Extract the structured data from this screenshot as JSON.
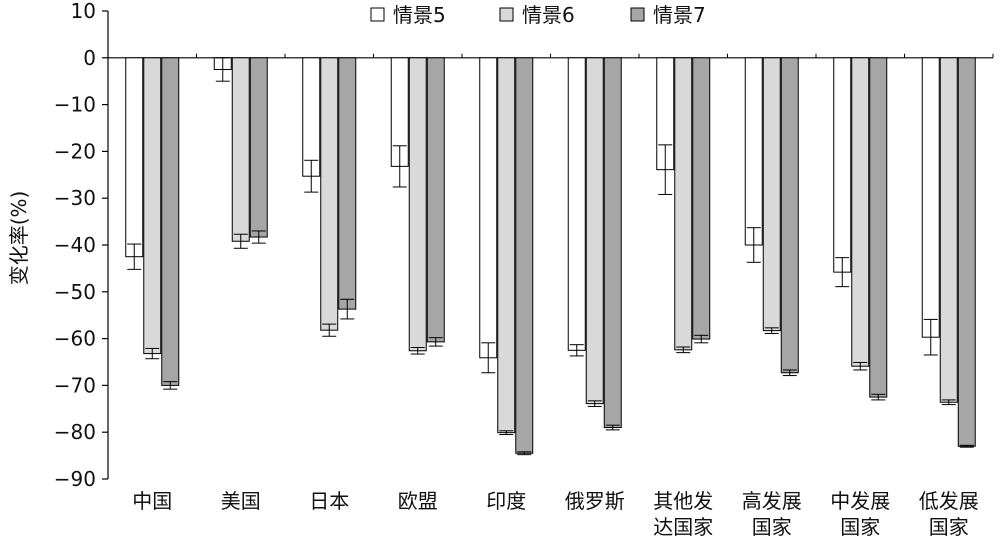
{
  "chart_data": {
    "type": "bar",
    "ylabel": "变化率(%)",
    "ylim": [
      -90,
      10
    ],
    "yticks": [
      10,
      0,
      -10,
      -20,
      -30,
      -40,
      -50,
      -60,
      -70,
      -80,
      -90
    ],
    "yticks_text": [
      "10",
      "0",
      "−10",
      "−20",
      "−30",
      "−40",
      "−50",
      "−60",
      "−70",
      "−80",
      "−90"
    ],
    "legend_position": "top-center",
    "categories": [
      [
        "中国"
      ],
      [
        "美国"
      ],
      [
        "日本"
      ],
      [
        "欧盟"
      ],
      [
        "印度"
      ],
      [
        "俄罗斯"
      ],
      [
        "其他发",
        "达国家"
      ],
      [
        "高发展",
        "国家"
      ],
      [
        "中发展",
        "国家"
      ],
      [
        "低发展",
        "国家"
      ]
    ],
    "series": [
      {
        "name": "情景5",
        "color": "#ffffff",
        "values": [
          -42.5,
          -2.5,
          -25.3,
          -23.2,
          -64.1,
          -62.5,
          -23.9,
          -40.0,
          -45.8,
          -59.7
        ],
        "errors": [
          2.7,
          2.5,
          3.4,
          4.4,
          3.2,
          1.2,
          5.3,
          3.7,
          3.1,
          3.8
        ]
      },
      {
        "name": "情景6",
        "color": "#d9d9d9",
        "values": [
          -63.2,
          -39.2,
          -58.2,
          -62.6,
          -80.1,
          -73.9,
          -62.4,
          -58.3,
          -65.9,
          -73.6
        ],
        "errors": [
          1.1,
          1.5,
          1.3,
          0.7,
          0.4,
          0.6,
          0.6,
          0.6,
          0.8,
          0.5
        ]
      },
      {
        "name": "情景7",
        "color": "#a6a6a6",
        "values": [
          -70.0,
          -38.3,
          -53.7,
          -60.7,
          -84.5,
          -79.0,
          -60.1,
          -67.3,
          -72.5,
          -83.0
        ],
        "errors": [
          0.8,
          1.3,
          2.1,
          0.9,
          0.3,
          0.5,
          0.8,
          0.6,
          0.6,
          0.2
        ]
      }
    ]
  }
}
